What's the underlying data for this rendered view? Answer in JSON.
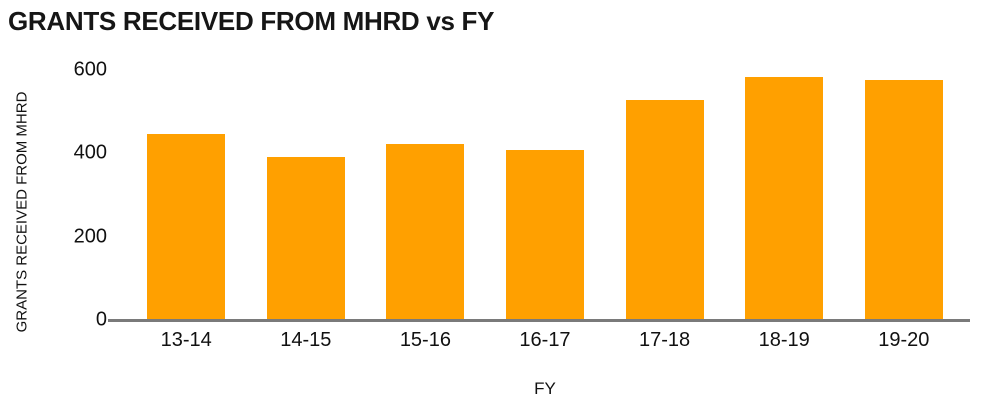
{
  "chart_data": {
    "type": "bar",
    "title": "GRANTS RECEIVED FROM MHRD vs FY",
    "xlabel": "FY",
    "ylabel": "GRANTS RECEIVED FROM MHRD",
    "categories": [
      "13-14",
      "14-15",
      "15-16",
      "16-17",
      "17-18",
      "18-19",
      "19-20"
    ],
    "values": [
      445,
      390,
      420,
      405,
      525,
      580,
      573
    ],
    "ylim": [
      0,
      600
    ],
    "yticks": [
      0,
      200,
      400,
      600
    ],
    "grid": false,
    "legend": "none",
    "bar_color": "#FFA000",
    "axis_line_color": "#7a7a7a",
    "text_color": "#111111",
    "background_color": "#ffffff"
  }
}
